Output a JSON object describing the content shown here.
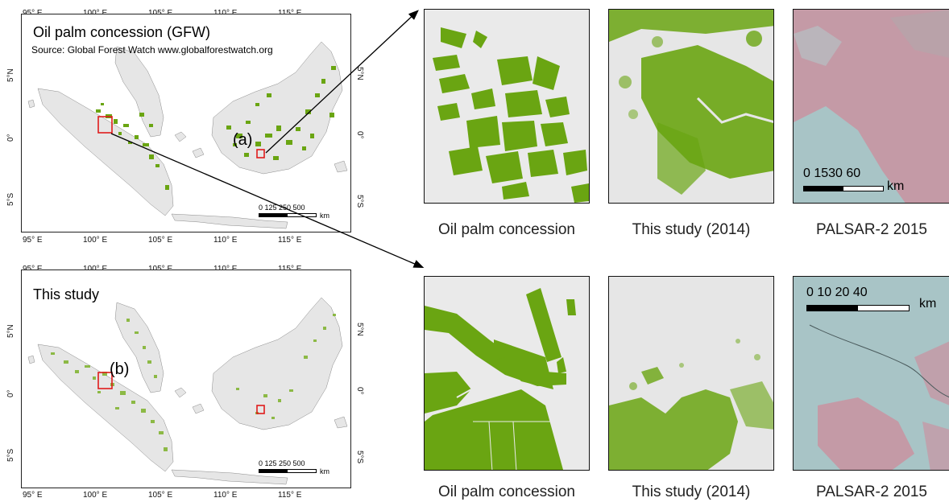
{
  "top_map": {
    "title": "Oil palm concession (GFW)",
    "subtitle": "Source: Global Forest Watch  www.globalforestwatch.org",
    "callout": "(a)",
    "lon_ticks": [
      "95° E",
      "100° E",
      "105° E",
      "110° E",
      "115° E"
    ],
    "lat_ticks": [
      "5°N",
      "0°",
      "5°S"
    ],
    "scale": {
      "labels": "0   125 250       500",
      "unit": "km"
    }
  },
  "bottom_map": {
    "title": "This study",
    "callout": "(b)",
    "lon_ticks": [
      "95° E",
      "100° E",
      "105° E",
      "110° E",
      "115° E"
    ],
    "lat_ticks": [
      "5°N",
      "0°",
      "5°S"
    ],
    "scale": {
      "labels": "0   125 250       500",
      "unit": "km"
    }
  },
  "panels_a": {
    "captions": [
      "Oil palm concession",
      "This study (2014)",
      "PALSAR-2 2015"
    ],
    "scale": {
      "labels": "0 1530   60",
      "unit": "km"
    }
  },
  "panels_b": {
    "captions": [
      "Oil palm concession",
      "This study (2014)",
      "PALSAR-2 2015"
    ],
    "scale": {
      "labels": "0   10  20         40",
      "unit": "km"
    }
  },
  "colors": {
    "palm_green": "#6aa512",
    "land_gray": "#e6e6e6",
    "highlight_red": "#e01b1b",
    "sar_cyan": "#a8c4c6",
    "sar_pink": "#c49aa6"
  }
}
